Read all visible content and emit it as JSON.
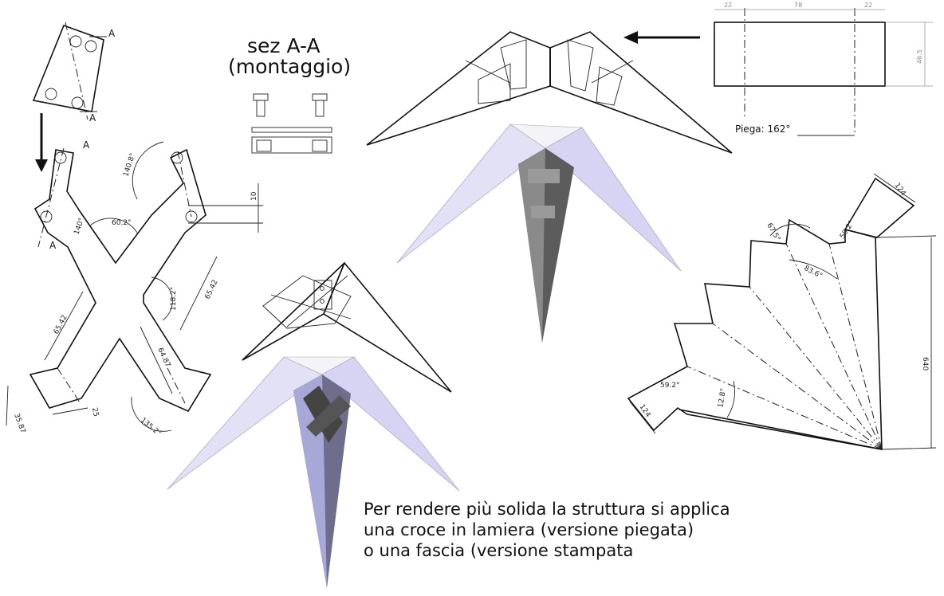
{
  "section": {
    "title": "sez A-A",
    "subtitle": "(montaggio)"
  },
  "cross_drawing": {
    "section_marks": [
      "A",
      "A",
      "A",
      "A"
    ],
    "dims": [
      "140.8°",
      "60.2°",
      "140°",
      "10",
      "118.2°",
      "65.42",
      "65.42",
      "64.87",
      "35.87",
      "25",
      "135.2°"
    ]
  },
  "strip_drawing": {
    "dims_top": [
      "22",
      "78",
      "22"
    ],
    "dim_side": "46.5",
    "fold_label": "Piega: 162°"
  },
  "fan_drawing": {
    "dims": [
      "124",
      "67.5°",
      "59.2°",
      "83.6°",
      "640",
      "59.2°",
      "124",
      "12.8°"
    ]
  },
  "caption": {
    "line1": "Per rendere più solida la struttura si applica",
    "line2": "una croce in lamiera (versione piegata)",
    "line3": "o una fascia (versione stampata"
  }
}
